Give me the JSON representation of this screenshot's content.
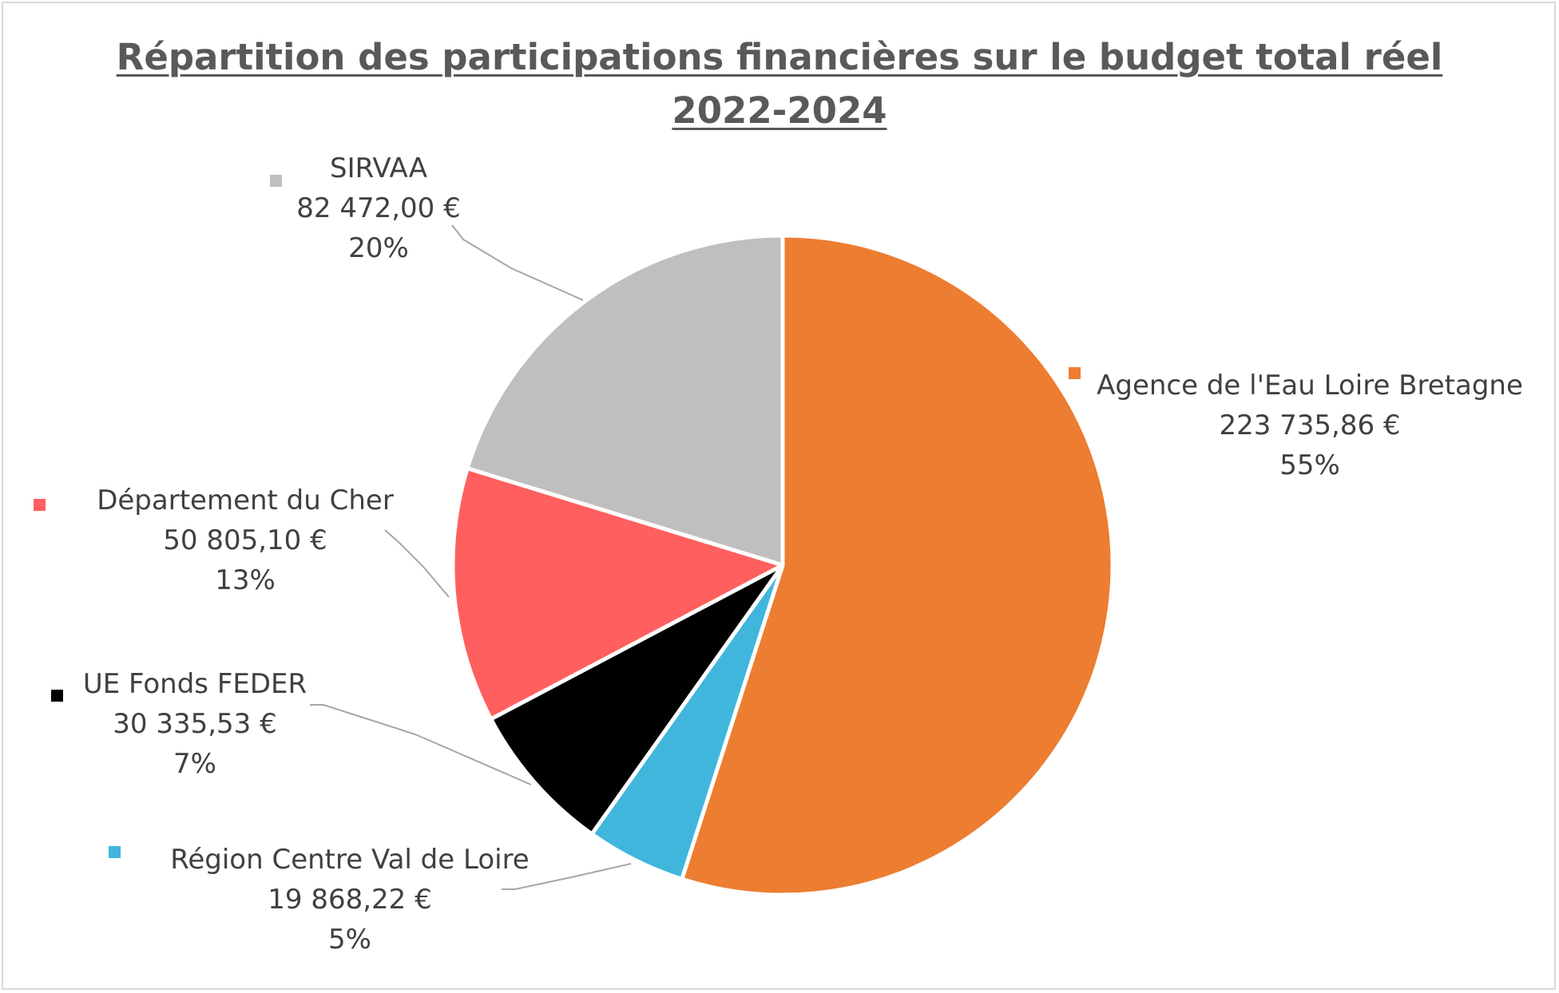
{
  "chart_data": {
    "type": "pie",
    "title_lines": [
      "Répartition des participations financières sur le budget total réel",
      "2022-2024"
    ],
    "slices": [
      {
        "name": "Agence de l'Eau Loire Bretagne",
        "value": 223735.86,
        "value_label": "223 735,86 €",
        "percent_label": "55%",
        "color": "#ED7D31"
      },
      {
        "name": "Région Centre Val de Loire",
        "value": 19868.22,
        "value_label": "19 868,22 €",
        "percent_label": "5%",
        "color": "#41B6DC"
      },
      {
        "name": "UE Fonds FEDER",
        "value": 30335.53,
        "value_label": "30 335,53 €",
        "percent_label": "7%",
        "color": "#000000"
      },
      {
        "name": "Département du Cher",
        "value": 50805.1,
        "value_label": "50 805,10 €",
        "percent_label": "13%",
        "color": "#FF5F5F"
      },
      {
        "name": "SIRVAA",
        "value": 82472.0,
        "value_label": "82 472,00 €",
        "percent_label": "20%",
        "color": "#BFBFBF"
      }
    ],
    "start_angle": "12 o'clock",
    "direction": "clockwise",
    "slice_border_color": "#FFFFFF",
    "leader_line_color": "#A6A6A6",
    "text_color": "#404040",
    "title_color": "#595959"
  }
}
